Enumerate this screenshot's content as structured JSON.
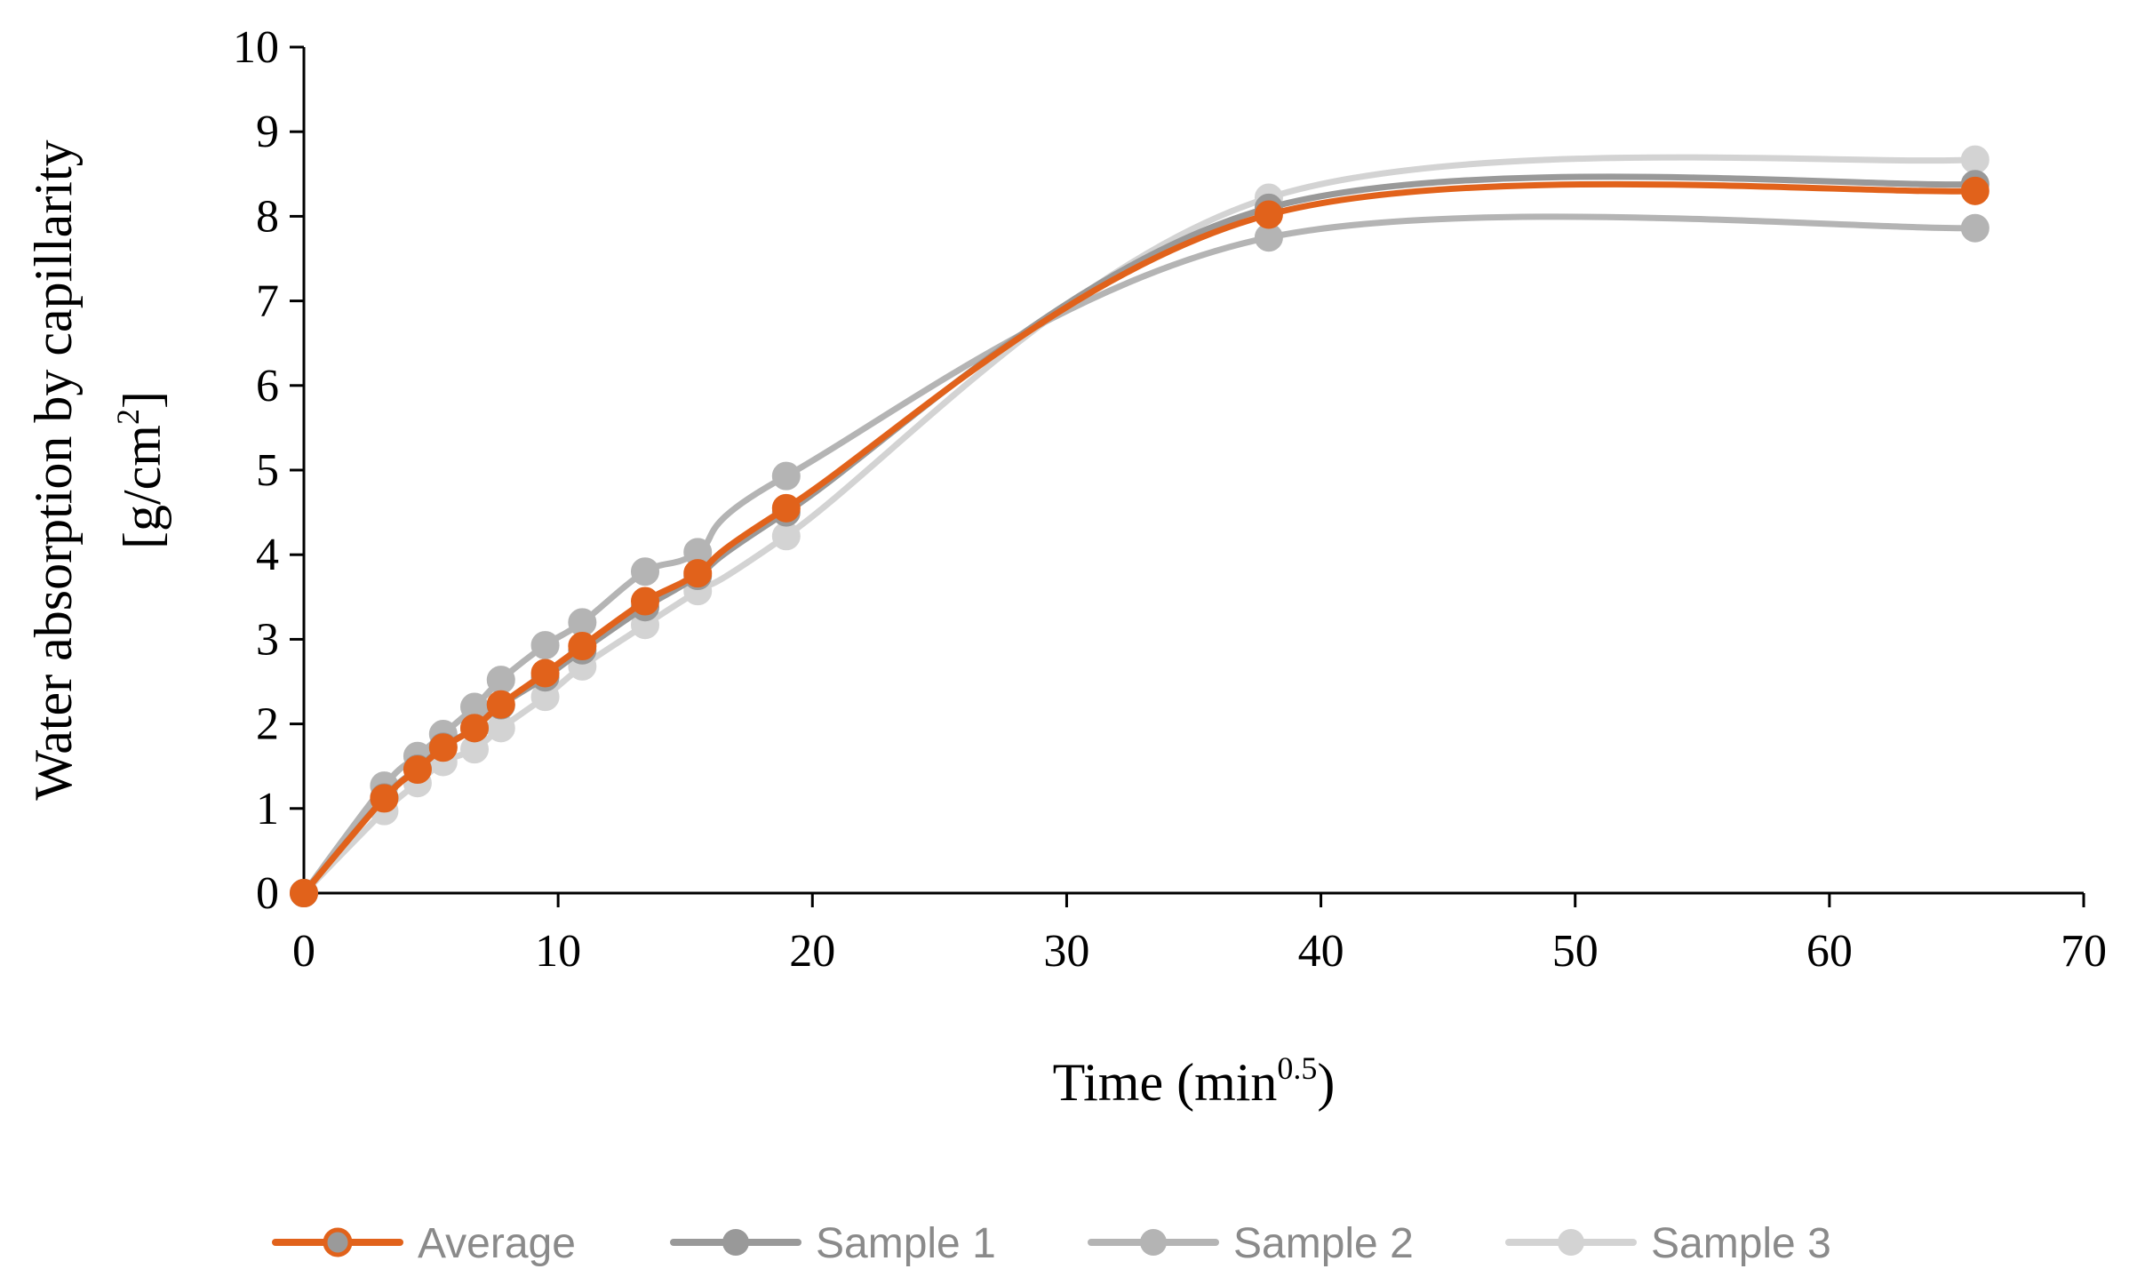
{
  "chart_data": {
    "type": "line",
    "xlabel": "Time (min",
    "xlabel_sup": "0.5",
    "xlabel_end": ")",
    "ylabel_line1": "Water absorption by capillarity",
    "ylabel_line2_main": "[g/cm",
    "ylabel_line2_sup": "2",
    "ylabel_line2_end": "]",
    "xlim": [
      0,
      70
    ],
    "ylim": [
      0,
      10
    ],
    "x_ticks": [
      "0",
      "10",
      "20",
      "30",
      "40",
      "50",
      "60",
      "70"
    ],
    "y_ticks": [
      "0",
      "1",
      "2",
      "3",
      "4",
      "5",
      "6",
      "7",
      "8",
      "9",
      "10"
    ],
    "grid": false,
    "smooth": true,
    "legend_position": "bottom",
    "series": [
      {
        "name": "Sample 3",
        "color": "#d3d3d3",
        "x": [
          0,
          3.16,
          4.47,
          5.48,
          6.71,
          7.75,
          9.49,
          10.95,
          13.42,
          15.49,
          18.97,
          37.95,
          65.73
        ],
        "y": [
          0,
          0.97,
          1.3,
          1.55,
          1.7,
          1.95,
          2.32,
          2.68,
          3.17,
          3.57,
          4.22,
          8.22,
          8.67
        ]
      },
      {
        "name": "Sample 2",
        "color": "#b4b4b4",
        "x": [
          0,
          3.16,
          4.47,
          5.48,
          6.71,
          7.75,
          9.49,
          10.95,
          13.42,
          15.49,
          18.97,
          37.95,
          65.73
        ],
        "y": [
          0,
          1.27,
          1.62,
          1.88,
          2.2,
          2.52,
          2.93,
          3.2,
          3.8,
          4.03,
          4.93,
          7.75,
          7.86
        ]
      },
      {
        "name": "Sample 1",
        "color": "#999999",
        "x": [
          0,
          3.16,
          4.47,
          5.48,
          6.71,
          7.75,
          9.49,
          10.95,
          13.42,
          15.49,
          18.97,
          37.95,
          65.73
        ],
        "y": [
          0,
          1.13,
          1.47,
          1.73,
          1.95,
          2.22,
          2.55,
          2.87,
          3.38,
          3.75,
          4.5,
          8.1,
          8.38
        ]
      },
      {
        "name": "Average",
        "color": "#e1621b",
        "x": [
          0,
          3.16,
          4.47,
          5.48,
          6.71,
          7.75,
          9.49,
          10.95,
          13.42,
          15.49,
          18.97,
          37.95,
          65.73
        ],
        "y": [
          0,
          1.12,
          1.46,
          1.72,
          1.95,
          2.23,
          2.6,
          2.92,
          3.45,
          3.78,
          4.55,
          8.02,
          8.3
        ]
      }
    ],
    "legend_order": [
      "Average",
      "Sample 1",
      "Sample 2",
      "Sample 3"
    ]
  }
}
